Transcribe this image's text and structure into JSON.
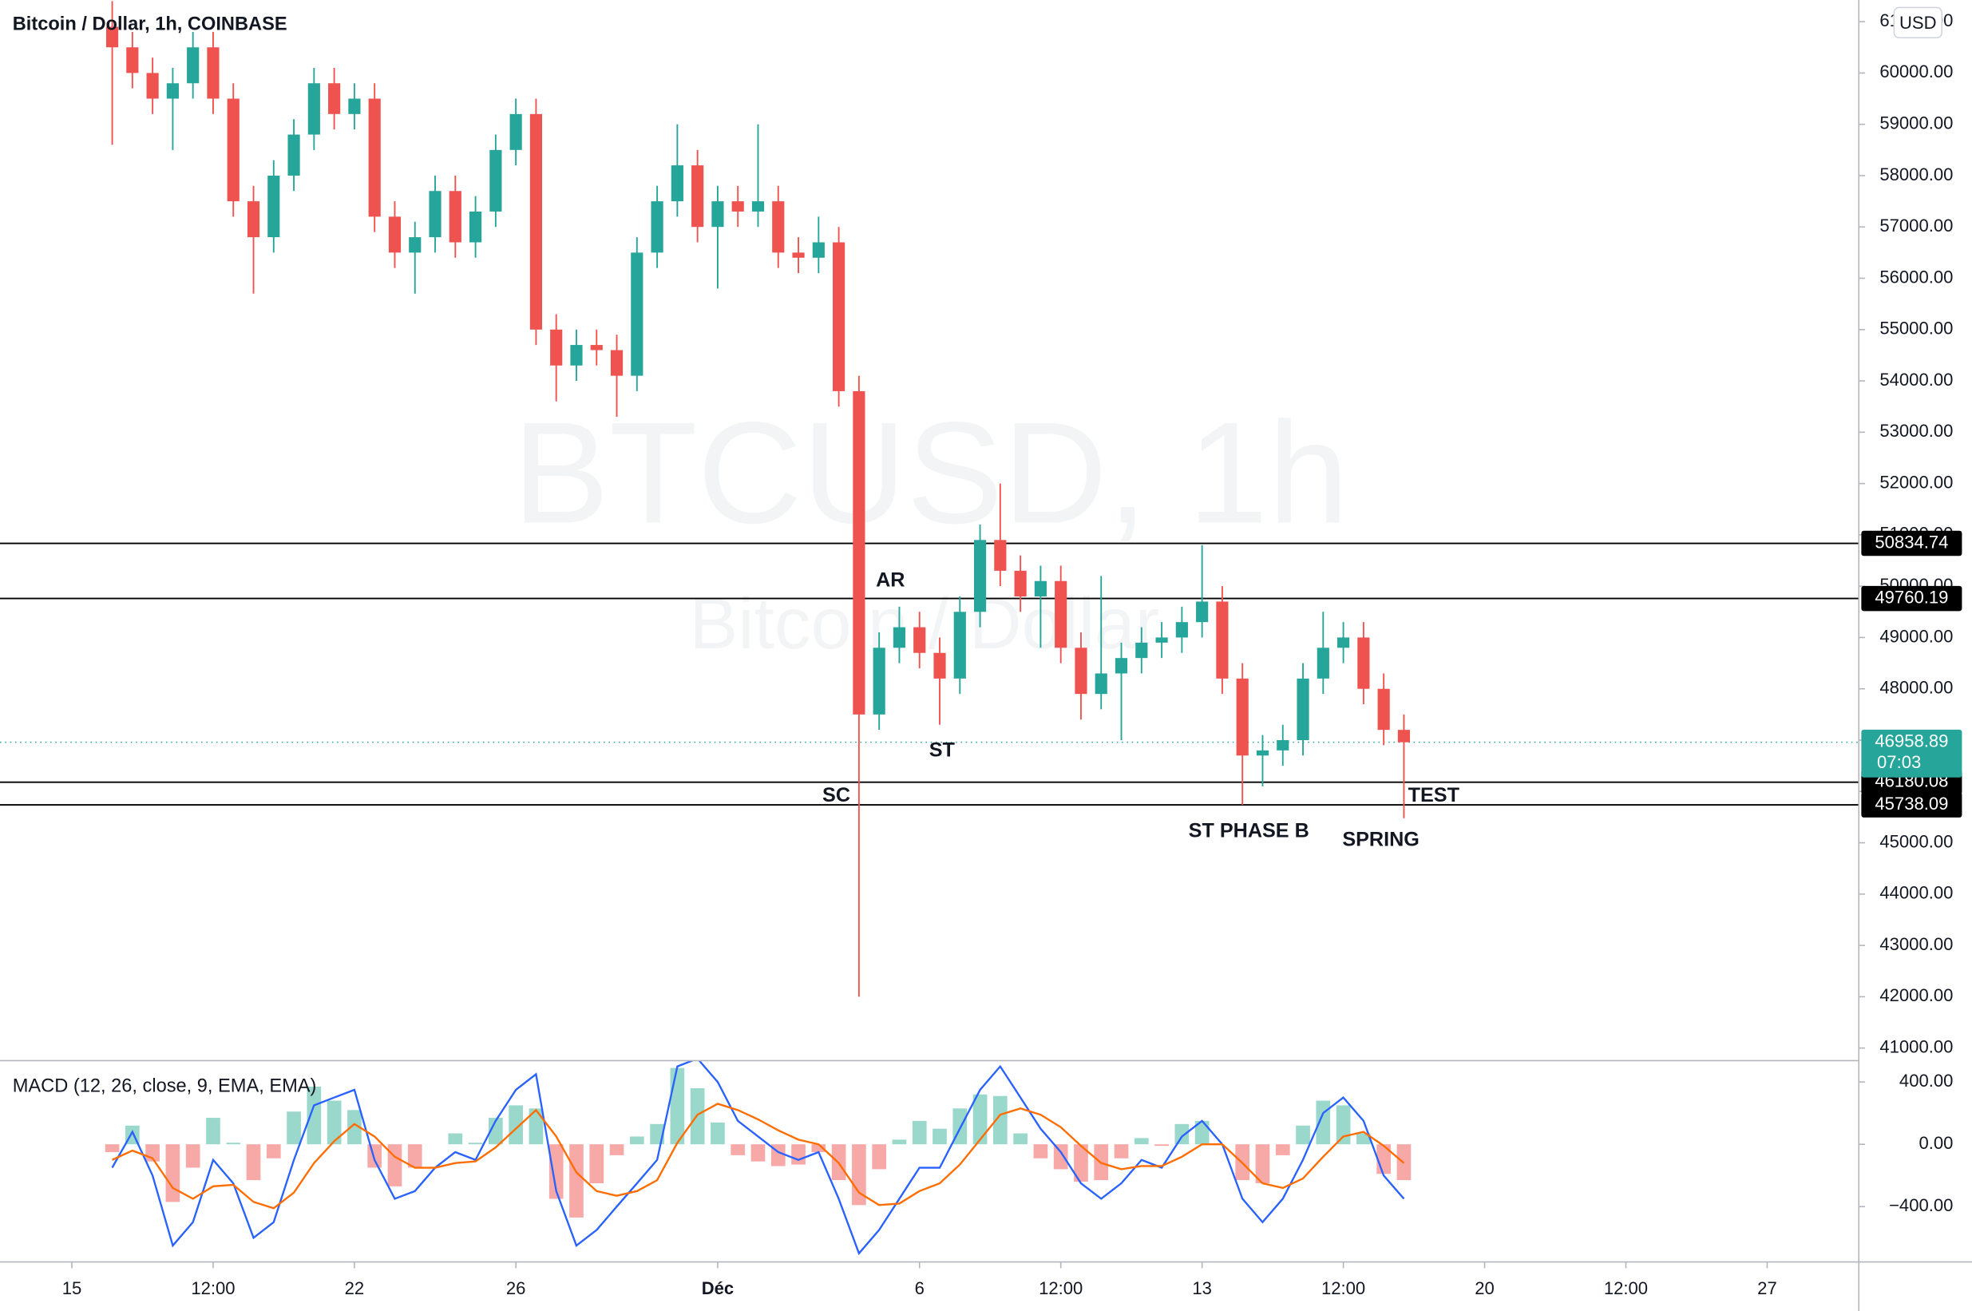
{
  "chart_data": [
    {
      "type": "candlestick",
      "title": "Bitcoin / Dollar, 1h, COINBASE",
      "currency": "USD",
      "watermark": {
        "symbol": "BTCUSD, 1h",
        "name": "Bitcoin / Dollar"
      },
      "up_color": "#26a69a",
      "down_color": "#ef5350",
      "x": [
        16,
        16.5,
        17,
        17.5,
        18,
        18.5,
        19,
        19.5,
        20,
        20.5,
        21,
        21.5,
        22,
        22.5,
        23,
        23.5,
        24,
        24.5,
        25,
        25.5,
        26,
        26.5,
        27,
        27.5,
        28,
        28.5,
        29,
        29.5,
        30,
        30.5,
        31,
        31.5,
        32,
        32.5,
        33,
        33.5,
        34,
        34.5,
        35,
        35.5,
        36,
        36.5,
        37,
        37.5,
        38,
        38.5,
        39,
        39.5,
        40,
        40.5,
        41,
        41.5,
        42,
        42.5,
        43,
        43.5,
        44,
        44.5,
        45,
        45.5,
        46,
        46.5,
        47,
        47.5,
        48
      ],
      "open": [
        60900,
        60500,
        60000,
        59500,
        59800,
        60500,
        59500,
        57500,
        56800,
        58000,
        58800,
        59800,
        59200,
        59500,
        57200,
        56500,
        56800,
        57700,
        56700,
        57300,
        58500,
        59200,
        55000,
        54300,
        54700,
        54600,
        54100,
        56500,
        57500,
        58200,
        57000,
        57500,
        57300,
        57500,
        56500,
        56400,
        56700,
        53800,
        47500,
        48800,
        49200,
        48700,
        48200,
        49500,
        50900,
        50300,
        49800,
        50100,
        48800,
        47900,
        48300,
        48600,
        48900,
        49000,
        49300,
        49700,
        48200,
        46700,
        46800,
        47000,
        48200,
        48800,
        49000,
        48000,
        47200
      ],
      "high": [
        61400,
        60800,
        60300,
        60100,
        60800,
        60800,
        59800,
        57800,
        58300,
        59100,
        60100,
        60100,
        59800,
        59800,
        57500,
        57100,
        58000,
        58000,
        57600,
        58800,
        59500,
        59500,
        55300,
        55000,
        55000,
        54900,
        56800,
        57800,
        59000,
        58500,
        57800,
        57800,
        59000,
        57800,
        56800,
        57200,
        57000,
        54100,
        49100,
        49600,
        49500,
        49000,
        49800,
        51200,
        52000,
        50600,
        50400,
        50400,
        49100,
        50200,
        48900,
        49200,
        49300,
        49600,
        50800,
        50000,
        48500,
        47100,
        47300,
        48500,
        49500,
        49300,
        49300,
        48300,
        47500
      ],
      "low": [
        58600,
        59700,
        59200,
        58500,
        59500,
        59200,
        57200,
        55700,
        56500,
        57700,
        58500,
        58900,
        58900,
        56900,
        56200,
        55700,
        56500,
        56400,
        56400,
        57000,
        58200,
        54700,
        53600,
        54000,
        54300,
        53300,
        53800,
        56200,
        57200,
        56700,
        55800,
        57000,
        57000,
        56200,
        56100,
        56100,
        53500,
        42000,
        47200,
        48500,
        48400,
        47300,
        47900,
        49200,
        50000,
        49500,
        48800,
        48500,
        47400,
        47600,
        47000,
        48300,
        48600,
        48700,
        49000,
        47900,
        45738,
        46100,
        46500,
        46700,
        47900,
        48500,
        47700,
        46900,
        45480
      ],
      "close": [
        60500,
        60000,
        59500,
        59800,
        60500,
        59500,
        57500,
        56800,
        58000,
        58800,
        59800,
        59200,
        59500,
        57200,
        56500,
        56800,
        57700,
        56700,
        57300,
        58500,
        59200,
        55000,
        54300,
        54700,
        54600,
        54100,
        56500,
        57500,
        58200,
        57000,
        57500,
        57300,
        57500,
        56500,
        56400,
        56700,
        53800,
        47500,
        48800,
        49200,
        48700,
        48200,
        49500,
        50900,
        50300,
        49800,
        50100,
        48800,
        47900,
        48300,
        48600,
        48900,
        49000,
        49300,
        49700,
        48200,
        46700,
        46800,
        47000,
        48200,
        48800,
        49000,
        48000,
        47200,
        46958.89
      ],
      "xlim": [
        13.22,
        59.27
      ],
      "xticks": [
        {
          "value": 15,
          "label": "15"
        },
        {
          "value": 18.5,
          "label": "12:00"
        },
        {
          "value": 22,
          "label": "22"
        },
        {
          "value": 26,
          "label": "26"
        },
        {
          "value": 31,
          "label": "Déc"
        },
        {
          "value": 36,
          "label": "6"
        },
        {
          "value": 39.5,
          "label": "12:00"
        },
        {
          "value": 43,
          "label": "13"
        },
        {
          "value": 46.5,
          "label": "12:00"
        },
        {
          "value": 50,
          "label": "20"
        },
        {
          "value": 53.5,
          "label": "12:00"
        },
        {
          "value": 57,
          "label": "27"
        }
      ],
      "ylim": [
        40755,
        61422
      ],
      "yticks": [
        {
          "value": 41000,
          "label": "41000.00"
        },
        {
          "value": 42000,
          "label": "42000.00"
        },
        {
          "value": 43000,
          "label": "43000.00"
        },
        {
          "value": 44000,
          "label": "44000.00"
        },
        {
          "value": 45000,
          "label": "45000.00"
        },
        {
          "value": 46000,
          "label": "46000.00"
        },
        {
          "value": 47000,
          "label": "47000.00"
        },
        {
          "value": 48000,
          "label": "48000.00"
        },
        {
          "value": 49000,
          "label": "49000.00"
        },
        {
          "value": 50000,
          "label": "50000.00"
        },
        {
          "value": 51000,
          "label": "51000.00"
        },
        {
          "value": 52000,
          "label": "52000.00"
        },
        {
          "value": 53000,
          "label": "53000.00"
        },
        {
          "value": 54000,
          "label": "54000.00"
        },
        {
          "value": 55000,
          "label": "55000.00"
        },
        {
          "value": 56000,
          "label": "56000.00"
        },
        {
          "value": 57000,
          "label": "57000.00"
        },
        {
          "value": 58000,
          "label": "58000.00"
        },
        {
          "value": 59000,
          "label": "59000.00"
        },
        {
          "value": 60000,
          "label": "60000.00"
        },
        {
          "value": 61000,
          "label": "61000.00"
        }
      ],
      "levels": [
        50834.74,
        49760.19,
        46180.08,
        45738.09
      ],
      "last_price": {
        "value": 46958.89,
        "countdown": "07:03",
        "color": "#26a69a"
      },
      "annotations": [
        "AR",
        "ST",
        "SC",
        "ST PHASE B",
        "SPRING",
        "TEST"
      ]
    },
    {
      "type": "macd",
      "title": "MACD (12, 26, close, 9, EMA, EMA)",
      "series": [
        {
          "color": "#2962ff",
          "values": [
            -150,
            80,
            -200,
            -650,
            -500,
            -100,
            -250,
            -600,
            -500,
            -100,
            250,
            300,
            350,
            -100,
            -350,
            -300,
            -150,
            -50,
            -100,
            150,
            350,
            450,
            -300,
            -650,
            -550,
            -400,
            -250,
            -100,
            500,
            550,
            400,
            150,
            50,
            -50,
            -100,
            -50,
            -350,
            -700,
            -550,
            -350,
            -150,
            -150,
            100,
            350,
            500,
            300,
            100,
            -50,
            -250,
            -350,
            -250,
            -100,
            -150,
            50,
            150,
            0,
            -350,
            -500,
            -350,
            -100,
            200,
            300,
            150,
            -200,
            -350
          ]
        },
        {
          "color": "#ff6d00",
          "values": [
            -100,
            -40,
            -90,
            -280,
            -350,
            -270,
            -260,
            -370,
            -410,
            -310,
            -120,
            20,
            130,
            50,
            -80,
            -150,
            -150,
            -120,
            -110,
            -20,
            100,
            220,
            50,
            -180,
            -300,
            -330,
            -300,
            -230,
            10,
            190,
            260,
            220,
            160,
            90,
            30,
            0,
            -120,
            -310,
            -390,
            -380,
            -300,
            -250,
            -130,
            30,
            190,
            230,
            190,
            110,
            -10,
            -120,
            -160,
            -140,
            -140,
            -80,
            0,
            0,
            -120,
            -250,
            -280,
            -220,
            -80,
            50,
            80,
            -10,
            -120
          ]
        }
      ],
      "histogram": {
        "up_color": "#9ad8cc",
        "down_color": "#f7a9a7",
        "values": [
          -50,
          120,
          -110,
          -370,
          -150,
          170,
          10,
          -230,
          -90,
          210,
          370,
          280,
          220,
          -150,
          -270,
          -150,
          0,
          70,
          10,
          170,
          250,
          230,
          -350,
          -470,
          -250,
          -70,
          50,
          130,
          490,
          360,
          140,
          -70,
          -110,
          -140,
          -130,
          -50,
          -230,
          -390,
          -160,
          30,
          150,
          100,
          230,
          320,
          310,
          70,
          -90,
          -160,
          -240,
          -230,
          -90,
          40,
          -10,
          130,
          150,
          0,
          -230,
          -250,
          -70,
          120,
          280,
          250,
          70,
          -190,
          -230
        ]
      },
      "ylim": [
        -755,
        537
      ],
      "yticks": [
        {
          "value": 400,
          "label": "400.00"
        },
        {
          "value": 0,
          "label": "0.00"
        },
        {
          "value": -400,
          "label": "−400.00"
        }
      ]
    }
  ]
}
